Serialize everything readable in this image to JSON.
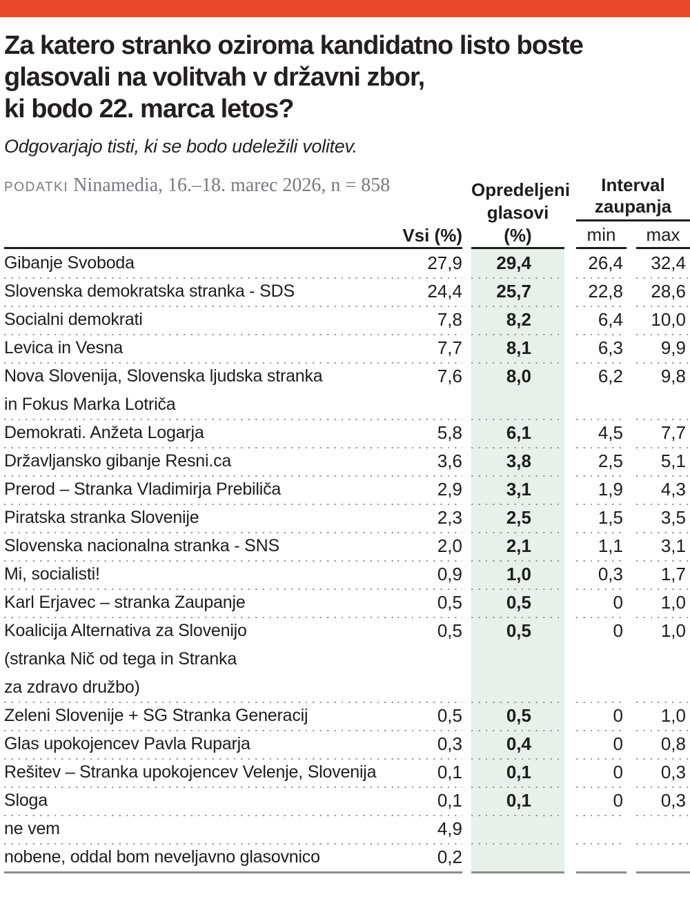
{
  "accent_color": "#E8492C",
  "highlight_color": "#E7F0EA",
  "title_lines": [
    "Za katero stranko oziroma kandidatno listo boste",
    "glasovali na volitvah v državni zbor,",
    "ki bodo 22. marca letos?"
  ],
  "subtitle": "Odgovarjajo tisti, ki se bodo udeležili volitev.",
  "source": {
    "label": "PODATKI",
    "text": " Ninamedia, 16.–18. marec 2026, n = 858"
  },
  "table": {
    "headers": {
      "vsi": "Vsi (%)",
      "opredeljeni": [
        "Opredeljeni",
        "glasovi (%)"
      ],
      "interval": [
        "Interval",
        "zaupanja"
      ],
      "min": "min",
      "max": "max"
    },
    "rows": [
      {
        "party": "Gibanje Svoboda",
        "vsi": "27,9",
        "opredeljeni": "29,4",
        "min": "26,4",
        "max": "32,4"
      },
      {
        "party": "Slovenska demokratska stranka - SDS",
        "vsi": "24,4",
        "opredeljeni": "25,7",
        "min": "22,8",
        "max": "28,6"
      },
      {
        "party": "Socialni demokrati",
        "vsi": "7,8",
        "opredeljeni": "8,2",
        "min": "6,4",
        "max": "10,0"
      },
      {
        "party": "Levica in Vesna",
        "vsi": "7,7",
        "opredeljeni": "8,1",
        "min": "6,3",
        "max": "9,9"
      },
      {
        "party": [
          "Nova Slovenija, Slovenska ljudska stranka",
          "in Fokus Marka Lotriča"
        ],
        "vsi": "7,6",
        "opredeljeni": "8,0",
        "min": "6,2",
        "max": "9,8"
      },
      {
        "party": "Demokrati. Anžeta Logarja",
        "vsi": "5,8",
        "opredeljeni": "6,1",
        "min": "4,5",
        "max": "7,7"
      },
      {
        "party": "Državljansko gibanje Resni.ca",
        "vsi": "3,6",
        "opredeljeni": "3,8",
        "min": "2,5",
        "max": "5,1"
      },
      {
        "party": "Prerod – Stranka Vladimirja Prebiliča",
        "vsi": "2,9",
        "opredeljeni": "3,1",
        "min": "1,9",
        "max": "4,3"
      },
      {
        "party": "Piratska stranka Slovenije",
        "vsi": "2,3",
        "opredeljeni": "2,5",
        "min": "1,5",
        "max": "3,5"
      },
      {
        "party": "Slovenska nacionalna stranka - SNS",
        "vsi": "2,0",
        "opredeljeni": "2,1",
        "min": "1,1",
        "max": "3,1"
      },
      {
        "party": "Mi, socialisti!",
        "vsi": "0,9",
        "opredeljeni": "1,0",
        "min": "0,3",
        "max": "1,7"
      },
      {
        "party": "Karl Erjavec – stranka Zaupanje",
        "vsi": "0,5",
        "opredeljeni": "0,5",
        "min": "0",
        "max": "1,0"
      },
      {
        "party": [
          "Koalicija Alternativa za Slovenijo",
          "(stranka Nič od tega in Stranka",
          "za zdravo družbo)"
        ],
        "vsi": "0,5",
        "opredeljeni": "0,5",
        "min": "0",
        "max": "1,0"
      },
      {
        "party": "Zeleni Slovenije + SG Stranka Generacij",
        "vsi": "0,5",
        "opredeljeni": "0,5",
        "min": "0",
        "max": "1,0"
      },
      {
        "party": "Glas upokojencev Pavla Ruparja",
        "vsi": "0,3",
        "opredeljeni": "0,4",
        "min": "0",
        "max": "0,8"
      },
      {
        "party": "Rešitev – Stranka upokojencev Velenje, Slovenija",
        "vsi": "0,1",
        "opredeljeni": "0,1",
        "min": "0",
        "max": "0,3"
      },
      {
        "party": "Sloga",
        "vsi": "0,1",
        "opredeljeni": "0,1",
        "min": "0",
        "max": "0,3"
      },
      {
        "party": "ne vem",
        "vsi": "4,9",
        "opredeljeni": "",
        "min": "",
        "max": ""
      },
      {
        "party": "nobene, oddal bom neveljavno glasovnico",
        "vsi": "0,2",
        "opredeljeni": "",
        "min": "",
        "max": ""
      }
    ]
  },
  "chart_data": {
    "type": "table",
    "title": "Za katero stranko oziroma kandidatno listo boste glasovali na volitvah v državni zbor, ki bodo 22. marca letos?",
    "subtitle": "Odgovarjajo tisti, ki se bodo udeležili volitev.",
    "source": "PODATKI Ninamedia, 16.–18. marec 2026, n = 858",
    "columns": [
      "Stranka",
      "Vsi (%)",
      "Opredeljeni glasovi (%)",
      "Interval zaupanja min",
      "Interval zaupanja max"
    ],
    "rows": [
      [
        "Gibanje Svoboda",
        27.9,
        29.4,
        26.4,
        32.4
      ],
      [
        "Slovenska demokratska stranka - SDS",
        24.4,
        25.7,
        22.8,
        28.6
      ],
      [
        "Socialni demokrati",
        7.8,
        8.2,
        6.4,
        10.0
      ],
      [
        "Levica in Vesna",
        7.7,
        8.1,
        6.3,
        9.9
      ],
      [
        "Nova Slovenija, Slovenska ljudska stranka in Fokus Marka Lotriča",
        7.6,
        8.0,
        6.2,
        9.8
      ],
      [
        "Demokrati. Anžeta Logarja",
        5.8,
        6.1,
        4.5,
        7.7
      ],
      [
        "Državljansko gibanje Resni.ca",
        3.6,
        3.8,
        2.5,
        5.1
      ],
      [
        "Prerod – Stranka Vladimirja Prebiliča",
        2.9,
        3.1,
        1.9,
        4.3
      ],
      [
        "Piratska stranka Slovenije",
        2.3,
        2.5,
        1.5,
        3.5
      ],
      [
        "Slovenska nacionalna stranka - SNS",
        2.0,
        2.1,
        1.1,
        3.1
      ],
      [
        "Mi, socialisti!",
        0.9,
        1.0,
        0.3,
        1.7
      ],
      [
        "Karl Erjavec – stranka Zaupanje",
        0.5,
        0.5,
        0,
        1.0
      ],
      [
        "Koalicija Alternativa za Slovenijo (stranka Nič od tega in Stranka za zdravo družbo)",
        0.5,
        0.5,
        0,
        1.0
      ],
      [
        "Zeleni Slovenije + SG Stranka Generacij",
        0.5,
        0.5,
        0,
        1.0
      ],
      [
        "Glas upokojencev Pavla Ruparja",
        0.3,
        0.4,
        0,
        0.8
      ],
      [
        "Rešitev – Stranka upokojencev Velenje, Slovenija",
        0.1,
        0.1,
        0,
        0.3
      ],
      [
        "Sloga",
        0.1,
        0.1,
        0,
        0.3
      ],
      [
        "ne vem",
        4.9,
        null,
        null,
        null
      ],
      [
        "nobene, oddal bom neveljavno glasovnico",
        0.2,
        null,
        null,
        null
      ]
    ]
  }
}
